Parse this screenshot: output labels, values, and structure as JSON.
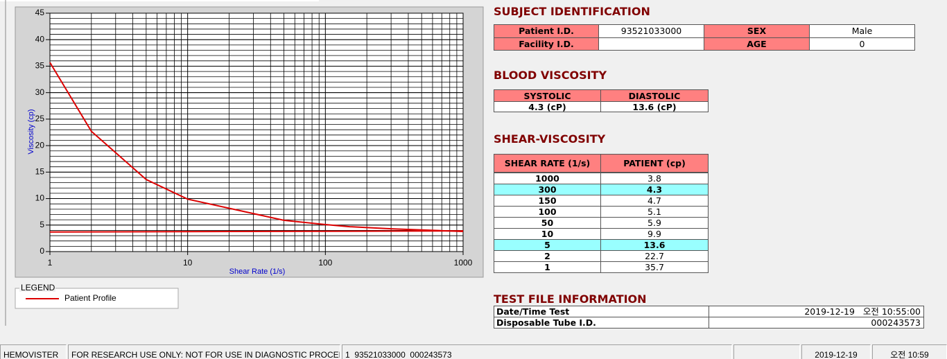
{
  "chart_data": {
    "type": "line",
    "xlabel": "Shear Rate (1/s)",
    "ylabel": "Viscosity (cp)",
    "xscale": "log",
    "xlim": [
      1,
      1000
    ],
    "xticks": [
      1,
      10,
      100,
      1000
    ],
    "ylim": [
      0,
      45
    ],
    "yticks": [
      0,
      5,
      10,
      15,
      20,
      25,
      30,
      35,
      40,
      45
    ],
    "grid": true,
    "minor_grid": true,
    "yminor_step": 1,
    "legend_title": "LEGEND",
    "series": [
      {
        "name": "Patient Profile",
        "color": "#dd0000",
        "x": [
          1,
          2,
          5,
          10,
          50,
          100,
          150,
          300,
          1000
        ],
        "values": [
          35.7,
          22.7,
          13.6,
          9.9,
          5.9,
          5.1,
          4.7,
          4.3,
          3.8
        ]
      },
      {
        "color": "#dd0000",
        "x": [
          1,
          1000
        ],
        "values": [
          3.7,
          3.9
        ]
      }
    ]
  },
  "subject_identification": {
    "title": "SUBJECT IDENTIFICATION",
    "patient_id_label": "Patient I.D.",
    "patient_id": "93521033000",
    "sex_label": "SEX",
    "sex": "Male",
    "facility_id_label": "Facility I.D.",
    "age_label": "AGE",
    "age": 0
  },
  "blood_viscosity": {
    "title": "BLOOD VISCOSITY",
    "headers": [
      "SYSTOLIC",
      "DIASTOLIC"
    ],
    "values": [
      "4.3 (cP)",
      "13.6 (cP)"
    ]
  },
  "shear_viscosity": {
    "title": "SHEAR-VISCOSITY",
    "headers": [
      "SHEAR RATE (1/s)",
      "PATIENT (cp)"
    ],
    "highlight_color": "#99ffff",
    "rows": [
      {
        "shear_rate": 1000,
        "patient": 3.8
      },
      {
        "shear_rate": 300,
        "patient": 4.3,
        "highlighted": true
      },
      {
        "shear_rate": 150,
        "patient": 4.7
      },
      {
        "shear_rate": 100,
        "patient": 5.1
      },
      {
        "shear_rate": 50,
        "patient": 5.9
      },
      {
        "shear_rate": 10,
        "patient": 9.9
      },
      {
        "shear_rate": 5,
        "patient": 13.6,
        "highlighted": true
      },
      {
        "shear_rate": 2,
        "patient": 22.7
      },
      {
        "shear_rate": 1,
        "patient": 35.7
      }
    ]
  },
  "test_file": {
    "title": "TEST FILE INFORMATION",
    "rows": [
      {
        "label": "Date/Time Test",
        "value": "2019-12-19   오전 10:55:00"
      },
      {
        "label": "Disposable Tube I.D.",
        "value": "000243573"
      }
    ]
  },
  "status_bar": [
    "HEMOVISTER",
    "FOR RESEARCH USE ONLY: NOT FOR USE IN DIAGNOSTIC PROCEDURES",
    "1  93521033000  000243573",
    "2019-12-19",
    "오전 10:59"
  ]
}
